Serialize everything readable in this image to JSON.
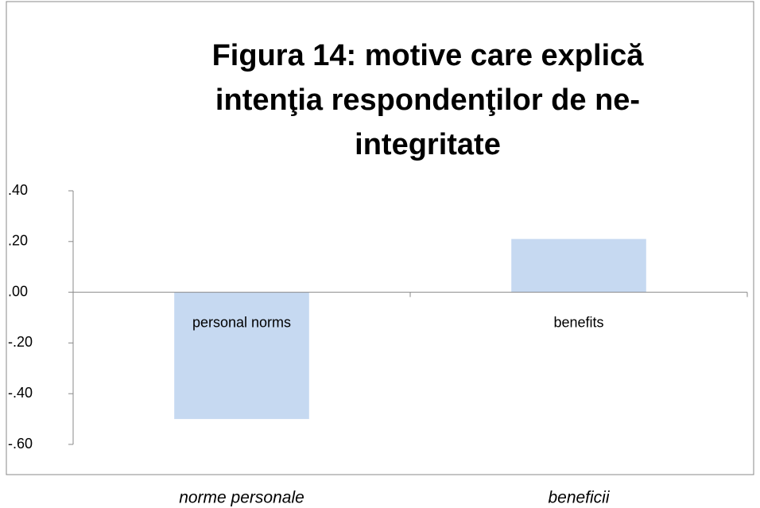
{
  "chart_data": {
    "type": "bar",
    "title": "Figura 14: motive care explică intenţia respondenţilor de ne-integritate",
    "categories": [
      "personal norms",
      "benefits"
    ],
    "category_translations": [
      "norme personale",
      "beneficii"
    ],
    "values": [
      -0.5,
      0.21
    ],
    "color": "#c6d9f1",
    "ylim": [
      -0.6,
      0.4
    ],
    "yticks": [
      {
        "value": 0.4,
        "label": ".40"
      },
      {
        "value": 0.2,
        "label": ".20"
      },
      {
        "value": 0,
        "label": ".00"
      },
      {
        "value": -0.2,
        "label": "-.20"
      },
      {
        "value": -0.4,
        "label": "-.40"
      },
      {
        "value": -0.6,
        "label": "-.60"
      }
    ],
    "grid": false
  }
}
